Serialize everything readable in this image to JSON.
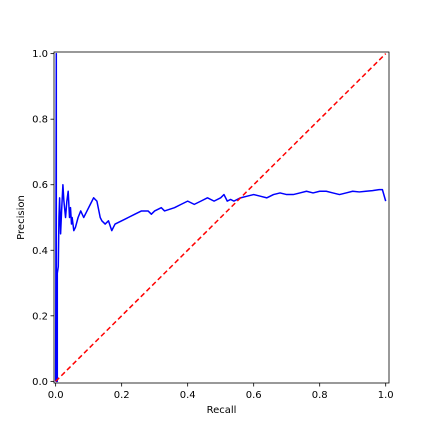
{
  "chart_data": {
    "type": "line",
    "title": "",
    "xlabel": "Recall",
    "ylabel": "Precision",
    "xlim": [
      -0.005,
      1.01
    ],
    "ylim": [
      -0.005,
      1.005
    ],
    "grid": false,
    "x_ticks": [
      0.0,
      0.2,
      0.4,
      0.6,
      0.8,
      1.0
    ],
    "y_ticks": [
      0.0,
      0.2,
      0.4,
      0.6,
      0.8,
      1.0
    ],
    "x_tick_labels": [
      "0.0",
      "0.2",
      "0.4",
      "0.6",
      "0.8",
      "1.0"
    ],
    "y_tick_labels": [
      "0.0",
      "0.2",
      "0.4",
      "0.6",
      "0.8",
      "1.0"
    ],
    "series": [
      {
        "style": "solid",
        "color": "#0000ff",
        "x": [
          0.0,
          0.002,
          0.002,
          0.005,
          0.005,
          0.008,
          0.01,
          0.012,
          0.015,
          0.018,
          0.022,
          0.025,
          0.03,
          0.034,
          0.038,
          0.042,
          0.045,
          0.048,
          0.05,
          0.055,
          0.06,
          0.068,
          0.076,
          0.085,
          0.095,
          0.105,
          0.115,
          0.125,
          0.135,
          0.14,
          0.15,
          0.16,
          0.17,
          0.175,
          0.18,
          0.2,
          0.22,
          0.24,
          0.26,
          0.28,
          0.29,
          0.3,
          0.32,
          0.33,
          0.36,
          0.38,
          0.4,
          0.42,
          0.44,
          0.46,
          0.48,
          0.5,
          0.51,
          0.52,
          0.53,
          0.54,
          0.56,
          0.58,
          0.6,
          0.62,
          0.64,
          0.66,
          0.68,
          0.7,
          0.72,
          0.74,
          0.76,
          0.78,
          0.8,
          0.82,
          0.84,
          0.86,
          0.88,
          0.9,
          0.92,
          0.94,
          0.96,
          0.98,
          0.99,
          1.0
        ],
        "y": [
          0.0,
          1.0,
          0.0,
          0.0,
          0.33,
          0.35,
          0.5,
          0.56,
          0.45,
          0.52,
          0.6,
          0.55,
          0.5,
          0.55,
          0.58,
          0.5,
          0.53,
          0.48,
          0.5,
          0.46,
          0.47,
          0.5,
          0.52,
          0.5,
          0.52,
          0.54,
          0.56,
          0.55,
          0.5,
          0.49,
          0.48,
          0.49,
          0.46,
          0.47,
          0.48,
          0.49,
          0.5,
          0.51,
          0.52,
          0.52,
          0.51,
          0.52,
          0.53,
          0.52,
          0.53,
          0.54,
          0.55,
          0.54,
          0.55,
          0.56,
          0.55,
          0.56,
          0.57,
          0.55,
          0.555,
          0.55,
          0.56,
          0.565,
          0.57,
          0.565,
          0.56,
          0.57,
          0.575,
          0.57,
          0.57,
          0.575,
          0.58,
          0.575,
          0.58,
          0.58,
          0.575,
          0.57,
          0.575,
          0.58,
          0.578,
          0.58,
          0.582,
          0.585,
          0.585,
          0.55
        ]
      },
      {
        "style": "dashed",
        "color": "#ff0000",
        "x": [
          0.0,
          1.0
        ],
        "y": [
          0.0,
          1.0
        ]
      }
    ]
  }
}
